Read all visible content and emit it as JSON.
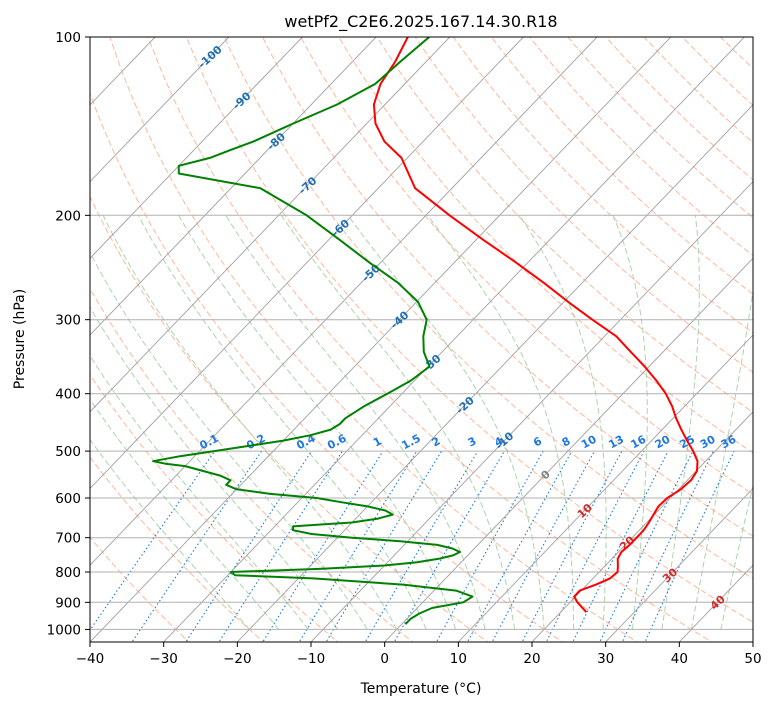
{
  "chart_data": {
    "type": "line",
    "chart_kind": "skew-T log-p",
    "title": "wetPf2_C2E6.2025.167.14.30.R18",
    "xlabel": "Temperature (°C)",
    "ylabel": "Pressure (hPa)",
    "xlim": [
      -40,
      50
    ],
    "ylim": [
      1050,
      100
    ],
    "y_scale": "log",
    "grid": true,
    "x_ticks": [
      "−40",
      "−30",
      "−20",
      "−10",
      "0",
      "10",
      "20",
      "30",
      "40",
      "50"
    ],
    "y_ticks": [
      "100",
      "200",
      "300",
      "400",
      "500",
      "600",
      "700",
      "800",
      "900",
      "1000"
    ],
    "x_tick_values": [
      -40,
      -30,
      -20,
      -10,
      0,
      10,
      20,
      30,
      40,
      50
    ],
    "y_tick_values": [
      100,
      200,
      300,
      400,
      500,
      600,
      700,
      800,
      900,
      1000
    ],
    "colors": {
      "temperature": "#ff0000",
      "dewpoint": "#008000",
      "isotherm": "#a0a0a0",
      "dry_adiabat": "#ffa07a",
      "moist_adiabat": "#98c898",
      "mixing_ratio": "#1e78e0",
      "isotherm_label": "#1f6fb4",
      "theta_label": "#d62728",
      "zero_label": "#808080"
    },
    "isotherm_labels": [
      "-100",
      "-90",
      "-80",
      "-70",
      "-60",
      "-50",
      "-40",
      "-30",
      "-20",
      "-10",
      "0",
      "10",
      "20",
      "30",
      "40"
    ],
    "isotherm_label_values": [
      -100,
      -90,
      -80,
      -70,
      -60,
      -50,
      -40,
      -30,
      -20,
      -10,
      0,
      10,
      20,
      30,
      40
    ],
    "mixing_ratio_labels": [
      "0.1",
      "0.2",
      "0.4",
      "0.6",
      "1",
      "1.5",
      "2",
      "3",
      "4",
      "6",
      "8",
      "10",
      "13",
      "16",
      "20",
      "25",
      "30",
      "36"
    ],
    "mixing_ratio_values": [
      0.1,
      0.2,
      0.4,
      0.6,
      1,
      1.5,
      2,
      3,
      4,
      6,
      8,
      10,
      13,
      16,
      20,
      25,
      30,
      36
    ],
    "series": [
      {
        "color": "#ff0000",
        "pressure": [
          935,
          900,
          880,
          860,
          840,
          820,
          800,
          780,
          760,
          740,
          720,
          700,
          680,
          660,
          640,
          620,
          600,
          580,
          560,
          540,
          520,
          500,
          480,
          460,
          440,
          420,
          400,
          380,
          360,
          340,
          320,
          300,
          280,
          260,
          240,
          220,
          200,
          180,
          160,
          150,
          140,
          130,
          120,
          110,
          100
        ],
        "temperature": [
          23.5,
          21,
          19.8,
          19.8,
          21.2,
          22.3,
          22.5,
          21.7,
          20.8,
          20.4,
          20.6,
          20.6,
          20.6,
          20.3,
          19.9,
          19.5,
          19.6,
          20.3,
          20.5,
          20.1,
          18.9,
          17.0,
          14.8,
          12.6,
          10.4,
          8.3,
          5.8,
          2.8,
          -0.6,
          -4.4,
          -8.4,
          -13.8,
          -19.4,
          -25.2,
          -31.7,
          -39.0,
          -46.8,
          -55.0,
          -60.8,
          -65.3,
          -68.8,
          -71.5,
          -73.3,
          -74.2,
          -75.7
        ]
      },
      {
        "color": "#008000",
        "pressure": [
          980,
          960,
          940,
          920,
          900,
          880,
          860,
          840,
          820,
          810,
          800,
          790,
          780,
          770,
          760,
          750,
          740,
          730,
          720,
          710,
          700,
          690,
          680,
          670,
          665,
          660,
          650,
          640,
          630,
          620,
          610,
          600,
          590,
          580,
          570,
          560,
          550,
          540,
          530,
          525,
          520,
          510,
          500,
          490,
          480,
          470,
          460,
          450,
          440,
          430,
          420,
          400,
          380,
          360,
          340,
          320,
          300,
          280,
          260,
          240,
          220,
          200,
          180,
          170,
          165,
          160,
          155,
          150,
          140,
          130,
          120,
          110,
          100
        ],
        "temperature": [
          0.5,
          0.5,
          1.0,
          2.0,
          5.5,
          6.0,
          3.0,
          -5.0,
          -18.0,
          -29.0,
          -30.0,
          -18.0,
          -10.0,
          -6.0,
          -3.5,
          -2.0,
          -1.5,
          -3.0,
          -5.5,
          -11.0,
          -18.0,
          -24.0,
          -27.0,
          -27.5,
          -24.0,
          -20.0,
          -17.0,
          -15.5,
          -17.0,
          -20.0,
          -24.0,
          -28.0,
          -35.0,
          -40.0,
          -42.0,
          -42.0,
          -44.0,
          -47.0,
          -50.0,
          -53.0,
          -55.0,
          -52.0,
          -48.0,
          -44.0,
          -40.0,
          -37.0,
          -35.0,
          -34.5,
          -34.5,
          -34.0,
          -33.5,
          -32.0,
          -30.5,
          -29.8,
          -32.5,
          -34.6,
          -36.3,
          -39.8,
          -45.0,
          -51.6,
          -58.5,
          -66.2,
          -76.0,
          -89.0,
          -90.0,
          -86.8,
          -85.0,
          -83.0,
          -80.0,
          -76.5,
          -74.0,
          -73.5,
          -72.8
        ]
      }
    ]
  }
}
